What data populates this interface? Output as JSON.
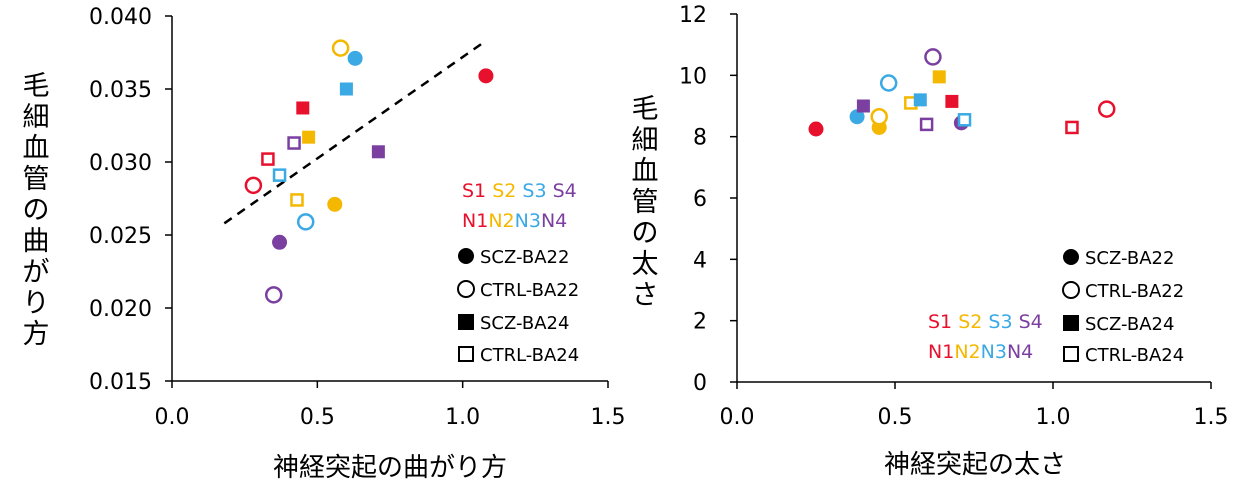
{
  "chart_data": [
    {
      "type": "scatter",
      "xlabel": "神経突起の曲がり方",
      "ylabel": "毛細血管の曲がり方",
      "xlim": [
        0.0,
        1.5
      ],
      "ylim": [
        0.015,
        0.04
      ],
      "xticks": [
        "0.0",
        "0.5",
        "1.0",
        "1.5"
      ],
      "yticks": [
        "0.015",
        "0.020",
        "0.025",
        "0.030",
        "0.035",
        "0.040"
      ],
      "trendline": {
        "style": "dashed",
        "from": [
          0.18,
          0.0258
        ],
        "to": [
          1.08,
          0.0383
        ]
      },
      "legend_colors": {
        "title_s": [
          "S1",
          "S2",
          "S3",
          "S4"
        ],
        "title_n": [
          "N1",
          "N2",
          "N3",
          "N4"
        ]
      },
      "legend_markers": [
        "SCZ-BA22",
        "CTRL-BA22",
        "SCZ-BA24",
        "CTRL-BA24"
      ],
      "points": [
        {
          "x": 1.08,
          "y": 0.0359,
          "color": "#e8112d",
          "marker": "filled-circle"
        },
        {
          "x": 0.58,
          "y": 0.0378,
          "color": "#f5b800",
          "marker": "open-circle"
        },
        {
          "x": 0.63,
          "y": 0.0371,
          "color": "#3aa9e4",
          "marker": "filled-circle"
        },
        {
          "x": 0.6,
          "y": 0.035,
          "color": "#3aa9e4",
          "marker": "filled-square"
        },
        {
          "x": 0.45,
          "y": 0.0337,
          "color": "#e8112d",
          "marker": "filled-square"
        },
        {
          "x": 0.47,
          "y": 0.0317,
          "color": "#f5b800",
          "marker": "filled-square"
        },
        {
          "x": 0.42,
          "y": 0.0313,
          "color": "#7b3fa0",
          "marker": "open-square"
        },
        {
          "x": 0.33,
          "y": 0.0302,
          "color": "#e8112d",
          "marker": "open-square"
        },
        {
          "x": 0.71,
          "y": 0.0307,
          "color": "#7b3fa0",
          "marker": "filled-square"
        },
        {
          "x": 0.28,
          "y": 0.0284,
          "color": "#e8112d",
          "marker": "open-circle"
        },
        {
          "x": 0.37,
          "y": 0.0291,
          "color": "#3aa9e4",
          "marker": "open-square"
        },
        {
          "x": 0.43,
          "y": 0.0274,
          "color": "#f5b800",
          "marker": "open-square"
        },
        {
          "x": 0.56,
          "y": 0.0271,
          "color": "#f5b800",
          "marker": "filled-circle"
        },
        {
          "x": 0.46,
          "y": 0.0259,
          "color": "#3aa9e4",
          "marker": "open-circle"
        },
        {
          "x": 0.37,
          "y": 0.0245,
          "color": "#7b3fa0",
          "marker": "filled-circle"
        },
        {
          "x": 0.35,
          "y": 0.0209,
          "color": "#7b3fa0",
          "marker": "open-circle"
        }
      ]
    },
    {
      "type": "scatter",
      "xlabel": "神経突起の太さ",
      "ylabel": "毛細血管の太さ",
      "xlim": [
        0.0,
        1.5
      ],
      "ylim": [
        0,
        12
      ],
      "xticks": [
        "0.0",
        "0.5",
        "1.0",
        "1.5"
      ],
      "yticks": [
        "0",
        "2",
        "4",
        "6",
        "8",
        "10",
        "12"
      ],
      "legend_colors": {
        "title_s": [
          "S1",
          "S2",
          "S3",
          "S4"
        ],
        "title_n": [
          "N1",
          "N2",
          "N3",
          "N4"
        ]
      },
      "legend_markers": [
        "SCZ-BA22",
        "CTRL-BA22",
        "SCZ-BA24",
        "CTRL-BA24"
      ],
      "points": [
        {
          "x": 0.25,
          "y": 8.25,
          "color": "#e8112d",
          "marker": "filled-circle"
        },
        {
          "x": 0.38,
          "y": 8.65,
          "color": "#3aa9e4",
          "marker": "filled-circle"
        },
        {
          "x": 0.4,
          "y": 9.0,
          "color": "#7b3fa0",
          "marker": "filled-square"
        },
        {
          "x": 0.45,
          "y": 8.3,
          "color": "#f5b800",
          "marker": "filled-circle"
        },
        {
          "x": 0.45,
          "y": 8.65,
          "color": "#f5b800",
          "marker": "open-circle"
        },
        {
          "x": 0.48,
          "y": 9.75,
          "color": "#3aa9e4",
          "marker": "open-circle"
        },
        {
          "x": 0.55,
          "y": 9.1,
          "color": "#f5b800",
          "marker": "open-square"
        },
        {
          "x": 0.58,
          "y": 9.2,
          "color": "#3aa9e4",
          "marker": "filled-square"
        },
        {
          "x": 0.6,
          "y": 8.4,
          "color": "#7b3fa0",
          "marker": "open-square"
        },
        {
          "x": 0.62,
          "y": 10.6,
          "color": "#7b3fa0",
          "marker": "open-circle"
        },
        {
          "x": 0.64,
          "y": 9.95,
          "color": "#f5b800",
          "marker": "filled-square"
        },
        {
          "x": 0.68,
          "y": 9.15,
          "color": "#e8112d",
          "marker": "filled-square"
        },
        {
          "x": 0.71,
          "y": 8.45,
          "color": "#7b3fa0",
          "marker": "filled-circle"
        },
        {
          "x": 0.72,
          "y": 8.55,
          "color": "#3aa9e4",
          "marker": "open-square"
        },
        {
          "x": 1.06,
          "y": 8.3,
          "color": "#e8112d",
          "marker": "open-square"
        },
        {
          "x": 1.17,
          "y": 8.9,
          "color": "#e8112d",
          "marker": "open-circle"
        }
      ]
    }
  ],
  "legend_label_colors": [
    "#e8112d",
    "#f5b800",
    "#3aa9e4",
    "#7b3fa0"
  ]
}
